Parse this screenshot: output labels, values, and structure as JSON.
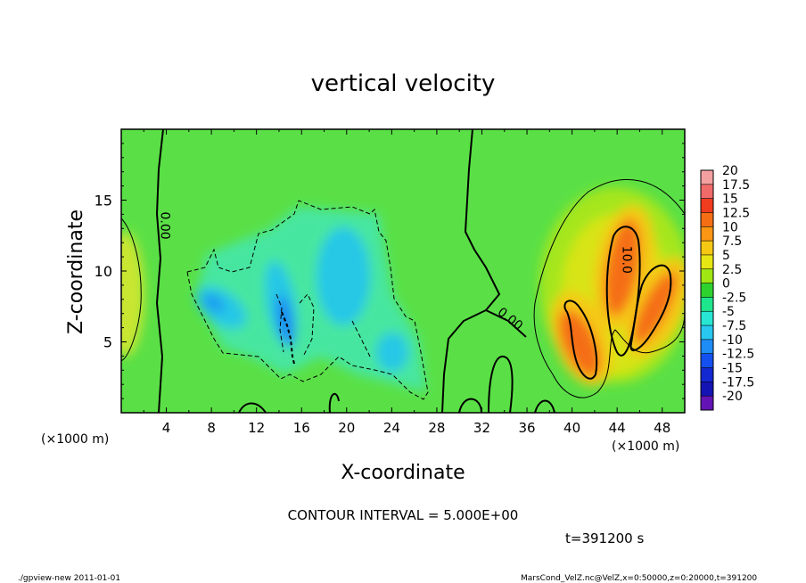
{
  "chart_data": {
    "type": "heatmap",
    "title": "vertical velocity",
    "xlabel": "X-coordinate",
    "ylabel": "Z-coordinate",
    "x_unit_left": "(×1000 m)",
    "x_unit_right": "(×1000 m)",
    "xlim": [
      0,
      50
    ],
    "ylim": [
      0,
      20
    ],
    "x_ticks": [
      4,
      8,
      12,
      16,
      20,
      24,
      28,
      32,
      36,
      40,
      44,
      48
    ],
    "y_ticks": [
      5,
      10,
      15
    ],
    "x_tick_labels": [
      "4",
      "8",
      "12",
      "16",
      "20",
      "24",
      "28",
      "32",
      "36",
      "40",
      "44",
      "48"
    ],
    "y_tick_labels": [
      "5",
      "10",
      "15"
    ],
    "contour_labels": [
      {
        "text": "0.00",
        "x": 3.5,
        "z": 13.2,
        "angle": 90
      },
      {
        "text": "0.00",
        "x": 34.3,
        "z": 6.4,
        "angle": 38
      },
      {
        "text": "10.0",
        "x": 44.5,
        "z": 10.8,
        "angle": 90
      }
    ],
    "colorbar": {
      "labels": [
        "20",
        "17.5",
        "15",
        "12.5",
        "10",
        "7.5",
        "5",
        "2.5",
        "0",
        "-2.5",
        "-5",
        "-7.5",
        "-10",
        "-12.5",
        "-15",
        "-17.5",
        "-20"
      ],
      "colors": [
        "#f5a0a0",
        "#f06a6a",
        "#f03c1e",
        "#f56e14",
        "#fa9614",
        "#f5c814",
        "#e6e614",
        "#a0e614",
        "#2ed22e",
        "#1ee68c",
        "#28e6d2",
        "#28c8f0",
        "#1e8cf5",
        "#1450f0",
        "#1428d2",
        "#1414b4",
        "#6414b4"
      ]
    },
    "features": [
      {
        "kind": "updraft",
        "x": 41,
        "z": 6,
        "max": 12.5
      },
      {
        "kind": "updraft",
        "x": 44.5,
        "z": 10,
        "max": 12.5
      },
      {
        "kind": "updraft",
        "x": 48,
        "z": 8,
        "max": 12.5
      },
      {
        "kind": "downdraft",
        "x": 9.5,
        "z": 7.5,
        "min": -7.5
      },
      {
        "kind": "downdraft",
        "x": 14.5,
        "z": 6.5,
        "min": -10
      },
      {
        "kind": "downdraft",
        "x": 20,
        "z": 9.5,
        "min": -7.5
      },
      {
        "kind": "downdraft",
        "x": 23.5,
        "z": 4.5,
        "min": -7.5
      }
    ]
  },
  "contour_interval": "CONTOUR INTERVAL = 5.000E+00",
  "time_label": "t=391200 s",
  "footer_left": "./gpview-new  2011-01-01",
  "footer_right": "MarsCond_VelZ.nc@VelZ,x=0:50000,z=0:20000,t=391200"
}
